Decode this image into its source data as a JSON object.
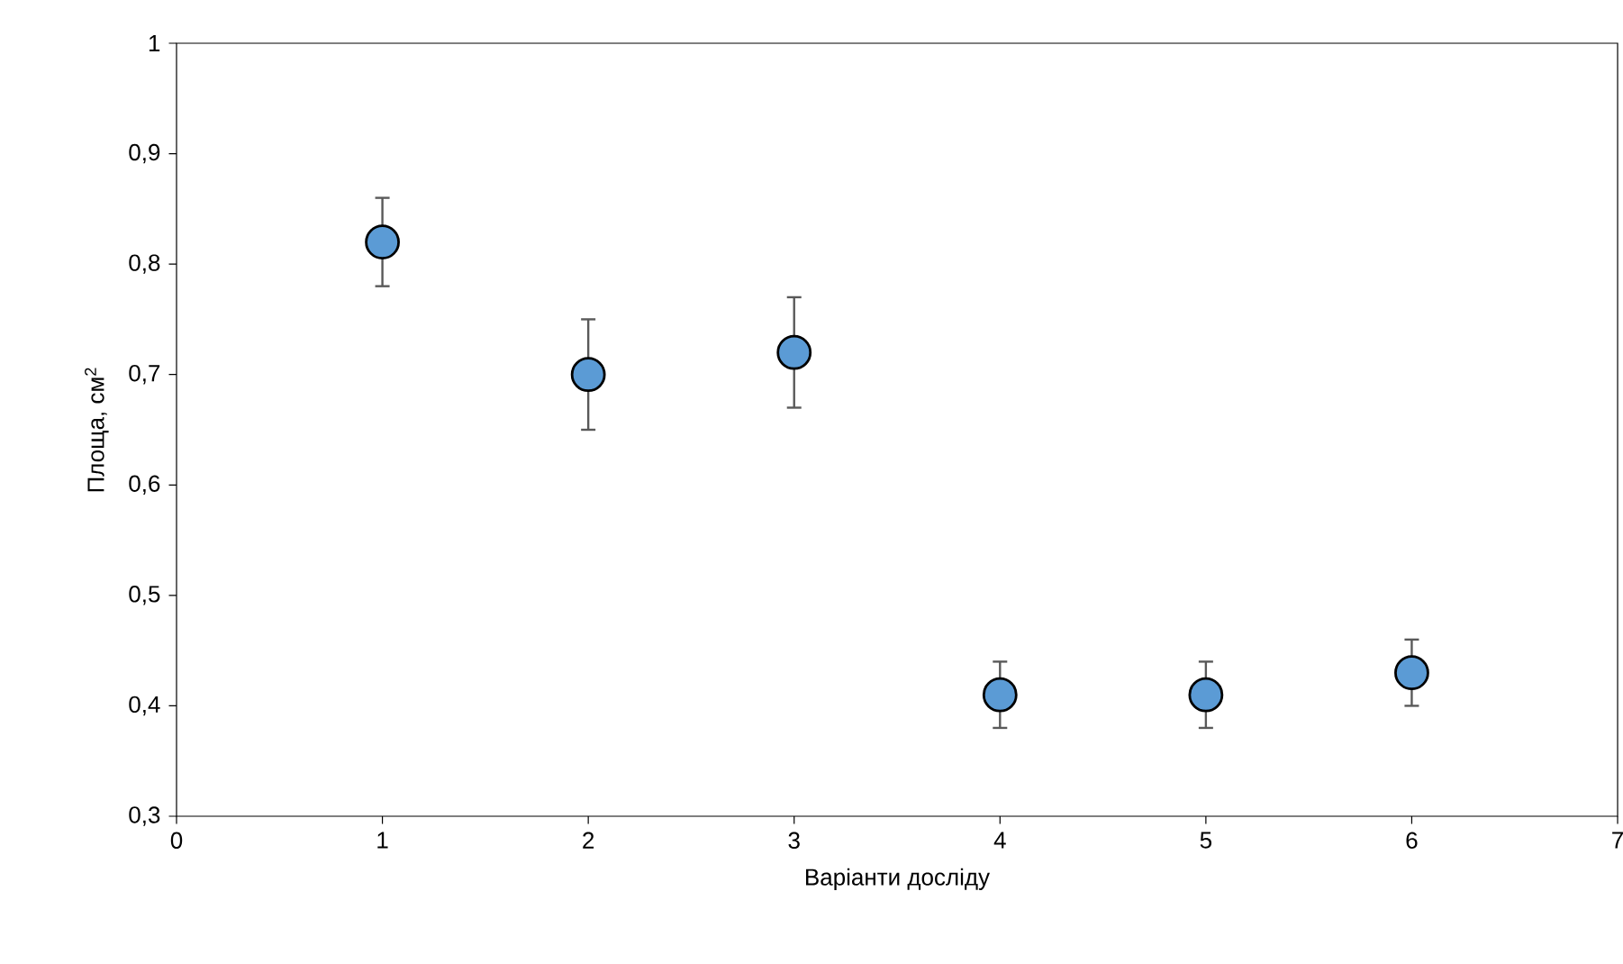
{
  "chart_data": {
    "type": "scatter",
    "xlabel": "Варіанти досліду",
    "ylabel": "Площа, см$^{2}$",
    "x": [
      1,
      2,
      3,
      4,
      5,
      6
    ],
    "values": [
      0.82,
      0.7,
      0.72,
      0.41,
      0.41,
      0.43
    ],
    "errors": [
      0.04,
      0.05,
      0.05,
      0.03,
      0.03,
      0.03
    ],
    "color": "#5b9bd5",
    "marker": "circle",
    "grid": false,
    "xlim": [
      0,
      7
    ],
    "xticks": [
      0,
      1,
      2,
      3,
      4,
      5,
      6,
      7
    ],
    "ylim": [
      0.3,
      1
    ],
    "yticks": [
      {
        "value": 0.3,
        "label": "0,3"
      },
      {
        "value": 0.4,
        "label": "0,4"
      },
      {
        "value": 0.5,
        "label": "0,5"
      },
      {
        "value": 0.6,
        "label": "0,6"
      },
      {
        "value": 0.7,
        "label": "0,7"
      },
      {
        "value": 0.8,
        "label": "0,8"
      },
      {
        "value": 0.9,
        "label": "0,9"
      },
      {
        "value": 1,
        "label": "1"
      }
    ]
  }
}
